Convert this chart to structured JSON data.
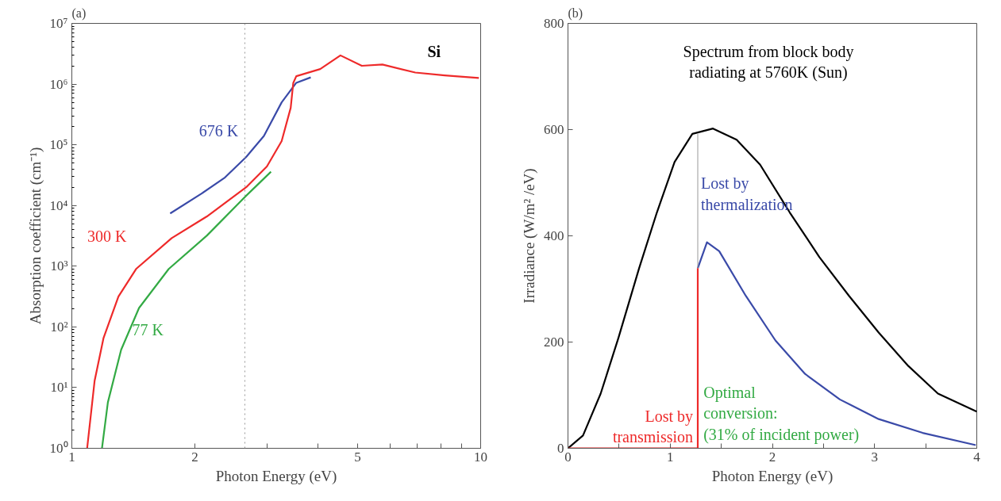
{
  "chart_data": [
    {
      "type": "line",
      "title": "(a)",
      "xlabel": "Photon Energy (eV)",
      "ylabel": "Absorption coefficient (cm⁻¹)",
      "log": "xy",
      "xlim": [
        1,
        10
      ],
      "ylim": [
        1,
        10000000
      ],
      "xticks": [
        1,
        2,
        {
          "value": 3,
          "label": null
        },
        {
          "value": 4,
          "label": null
        },
        5,
        {
          "value": 6,
          "label": null
        },
        {
          "value": 7,
          "label": null
        },
        {
          "value": 8,
          "label": null
        },
        {
          "value": 9,
          "label": null
        },
        10
      ],
      "yticks": [
        {
          "value": 1,
          "label": "10⁰"
        },
        {
          "value": 10,
          "label": "10¹"
        },
        {
          "value": 100,
          "label": "10²"
        },
        {
          "value": 1000,
          "label": "10³"
        },
        {
          "value": 10000,
          "label": "10⁴"
        },
        {
          "value": 100000,
          "label": "10⁵"
        },
        {
          "value": 1000000,
          "label": "10⁶"
        },
        {
          "value": 10000000,
          "label": "10⁷"
        }
      ],
      "grid": false,
      "marker": "none",
      "line_style": "solid",
      "ref_lines": [
        {
          "axis": "x",
          "value": 2.65,
          "label": null,
          "color": "#999999",
          "line_style": "dotted"
        }
      ],
      "annotations": [
        "Si"
      ],
      "series": [
        {
          "name": "676 K",
          "color": "#3a4aa8",
          "x": [
            1.74,
            2.07,
            2.37,
            2.67,
            2.95,
            3.26,
            3.54,
            3.84
          ],
          "values": [
            7400,
            15500,
            29000,
            63000,
            140000,
            500000,
            1050000,
            1290000
          ]
        },
        {
          "name": "300 K",
          "color": "#ee2a2a",
          "x": [
            1.09,
            1.137,
            1.195,
            1.3,
            1.436,
            1.755,
            2.14,
            2.67,
            3.0,
            3.26,
            3.43,
            3.48,
            3.54,
            4.05,
            4.54,
            5.12,
            5.75,
            6.92,
            8.17,
            9.9
          ],
          "values": [
            1,
            13,
            65,
            315,
            900,
            2900,
            6600,
            20000,
            44000,
            115000,
            405000,
            1040000,
            1350000,
            1770000,
            2970000,
            2000000,
            2100000,
            1550000,
            1390000,
            1260000
          ]
        },
        {
          "name": "77 K",
          "color": "#33aa44",
          "x": [
            1.185,
            1.225,
            1.32,
            1.46,
            1.726,
            2.14,
            2.67,
            3.07
          ],
          "values": [
            1,
            5.7,
            42,
            205,
            900,
            3200,
            14500,
            36000
          ]
        }
      ]
    },
    {
      "type": "line",
      "title": "(b)",
      "xlabel": "Photon Energy (eV)",
      "ylabel": "Irradiance (W/m² /eV)",
      "xlim": [
        0,
        4
      ],
      "ylim": [
        0,
        800
      ],
      "xticks": [
        0,
        {
          "value": 0.5,
          "label": null
        },
        1,
        {
          "value": 1.5,
          "label": null
        },
        2,
        {
          "value": 2.5,
          "label": null
        },
        3,
        {
          "value": 3.5,
          "label": null
        },
        4
      ],
      "yticks": [
        0,
        200,
        400,
        600,
        800
      ],
      "grid": false,
      "marker": "none",
      "line_style": "solid",
      "annotations": [
        "Spectrum from block body\nradiating at 5760K (Sun)",
        "Optimal\nconversion:\n(31% of incident power)"
      ],
      "series": [
        {
          "color": "#000000",
          "x": [
            0.0,
            0.147,
            0.32,
            0.494,
            0.696,
            0.87,
            1.043,
            1.217,
            1.419,
            1.65,
            1.88,
            2.17,
            2.46,
            2.75,
            3.04,
            3.33,
            3.62,
            4.0
          ],
          "values": [
            0,
            24,
            103,
            208,
            339,
            444,
            539,
            592,
            602,
            581,
            534,
            444,
            360,
            287,
            218,
            155,
            103,
            69
          ]
        },
        {
          "name": "Lost by\nthermalization",
          "color": "#3a4aa8",
          "x": [
            1.27,
            1.36,
            1.48,
            1.74,
            2.03,
            2.32,
            2.66,
            3.04,
            3.47,
            3.99
          ],
          "values": [
            339,
            388,
            371,
            287,
            203,
            140,
            92,
            55,
            29,
            6
          ]
        },
        {
          "name": "Lost by\ntransmission",
          "color": "#ee2a2a",
          "x": [
            0,
            1.27,
            1.27
          ],
          "values": [
            0,
            0,
            339
          ]
        },
        {
          "color": "#999999",
          "x": [
            1.27,
            1.27
          ],
          "values": [
            339,
            592
          ]
        }
      ]
    }
  ]
}
